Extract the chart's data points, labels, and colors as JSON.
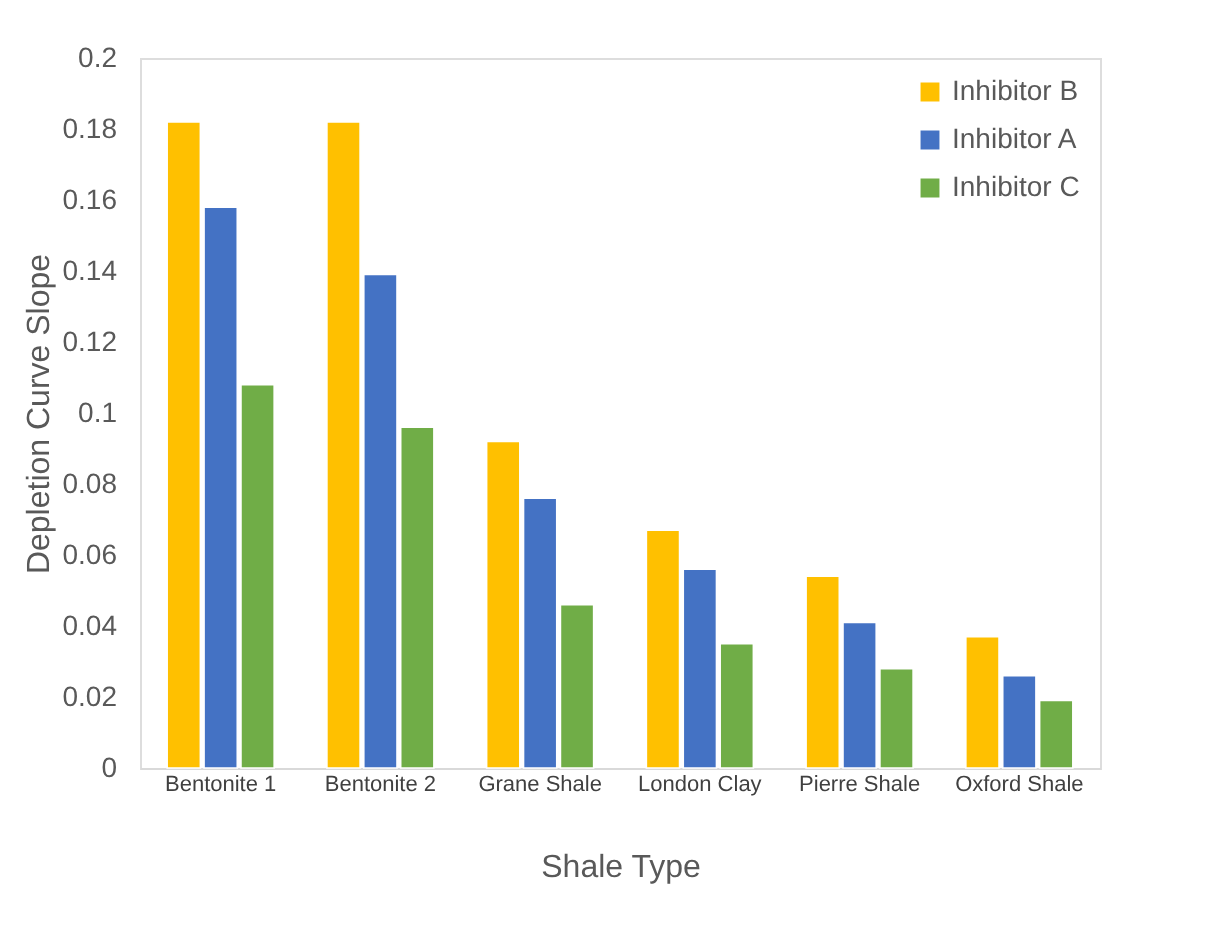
{
  "chart_data": {
    "type": "bar",
    "xlabel": "Shale Type",
    "ylabel": "Depletion Curve Slope",
    "categories": [
      "Bentonite 1",
      "Bentonite 2",
      "Grane Shale",
      "London Clay",
      "Pierre Shale",
      "Oxford Shale"
    ],
    "series": [
      {
        "name": "Inhibitor B",
        "color": "#ffc000",
        "values": [
          0.182,
          0.182,
          0.092,
          0.067,
          0.054,
          0.037
        ]
      },
      {
        "name": "Inhibitor A",
        "color": "#4472c4",
        "values": [
          0.158,
          0.139,
          0.076,
          0.056,
          0.041,
          0.026
        ]
      },
      {
        "name": "Inhibitor C",
        "color": "#70ad47",
        "values": [
          0.108,
          0.096,
          0.046,
          0.035,
          0.028,
          0.019
        ]
      }
    ],
    "ylim": [
      0,
      0.2
    ],
    "yticks": [
      0,
      0.02,
      0.04,
      0.06,
      0.08,
      0.1,
      0.12,
      0.14,
      0.16,
      0.18,
      0.2
    ],
    "grid": false,
    "legend": "top right"
  }
}
